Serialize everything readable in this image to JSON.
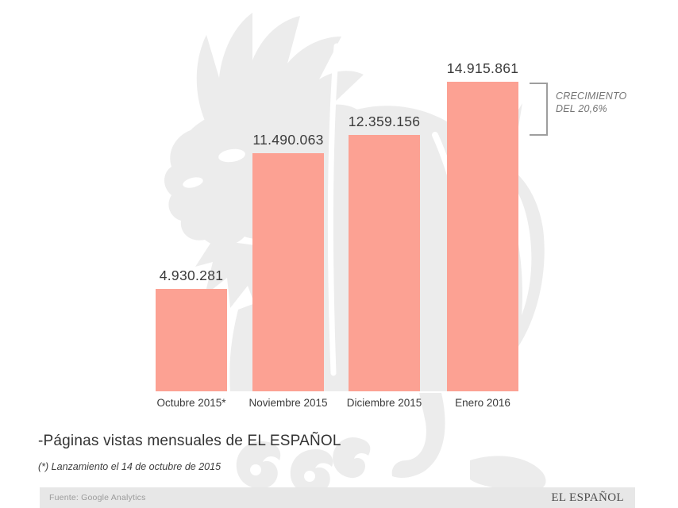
{
  "chart_data": {
    "type": "bar",
    "title": "-Páginas vistas mensuales de EL ESPAÑOL",
    "categories": [
      "Octubre 2015*",
      "Noviembre 2015",
      "Diciembre 2015",
      "Enero 2016"
    ],
    "values": [
      4930281,
      11490063,
      12359156,
      14915861
    ],
    "value_labels": [
      "4.930.281",
      "11.490.063",
      "12.359.156",
      "14.915.861"
    ],
    "annotation": "CRECIMIENTO DEL 20,6%",
    "xlabel": "",
    "ylabel": "",
    "ylim": [
      0,
      15000000
    ],
    "grid": false,
    "legend": false,
    "bar_color": "#FCA193"
  },
  "title": "-Páginas vistas mensuales de EL ESPAÑOL",
  "footnote": "(*) Lanzamiento el 14 de octubre de 2015",
  "annotation": {
    "line1": "CRECIMIENTO",
    "line2": "DEL 20,6%"
  },
  "footer": {
    "source": "Fuente: Google Analytics",
    "brand": "EL ESPAÑOL"
  },
  "colors": {
    "bar": "#FCA193",
    "watermark": "#ECECEC",
    "label": "#3B3B3B",
    "annotation": "#757575",
    "bracket": "#9E9E9E",
    "footer_bg": "#E7E7E7",
    "footer_text": "#9B9B9B",
    "brand_text": "#4B4B4B"
  }
}
